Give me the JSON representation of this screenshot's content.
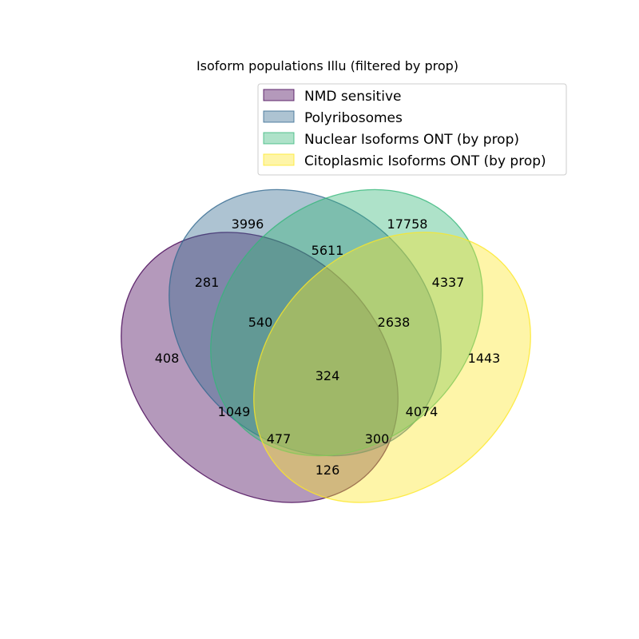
{
  "title": "Isoform populations Illu (filtered by prop)",
  "sets": [
    {
      "key": "nmd",
      "name": "NMD sensitive",
      "fill": "#440154",
      "stroke": "#440154"
    },
    {
      "key": "poly",
      "name": "Polyribosomes",
      "fill": "#31688e",
      "stroke": "#31688e"
    },
    {
      "key": "nuc",
      "name": "Nuclear Isoforms ONT (by prop)",
      "fill": "#35b779",
      "stroke": "#35b779"
    },
    {
      "key": "cyto",
      "name": "Citoplasmic Isoforms ONT (by prop)",
      "fill": "#fde725",
      "stroke": "#fde725"
    }
  ],
  "regions": [
    {
      "id": "poly-only",
      "value": "3996"
    },
    {
      "id": "nuc-only",
      "value": "17758"
    },
    {
      "id": "poly-nuc",
      "value": "5611"
    },
    {
      "id": "nmd-poly",
      "value": "281"
    },
    {
      "id": "nuc-cyto",
      "value": "4337"
    },
    {
      "id": "nmd-poly-nuc",
      "value": "540"
    },
    {
      "id": "poly-nuc-cyto",
      "value": "2638"
    },
    {
      "id": "nmd-only",
      "value": "408"
    },
    {
      "id": "cyto-only",
      "value": "1443"
    },
    {
      "id": "all",
      "value": "324"
    },
    {
      "id": "nmd-nuc",
      "value": "1049"
    },
    {
      "id": "poly-cyto",
      "value": "4074"
    },
    {
      "id": "nmd-nuc-cyto",
      "value": "477"
    },
    {
      "id": "nmd-poly-cyto",
      "value": "300"
    },
    {
      "id": "nmd-cyto",
      "value": "126"
    }
  ]
}
